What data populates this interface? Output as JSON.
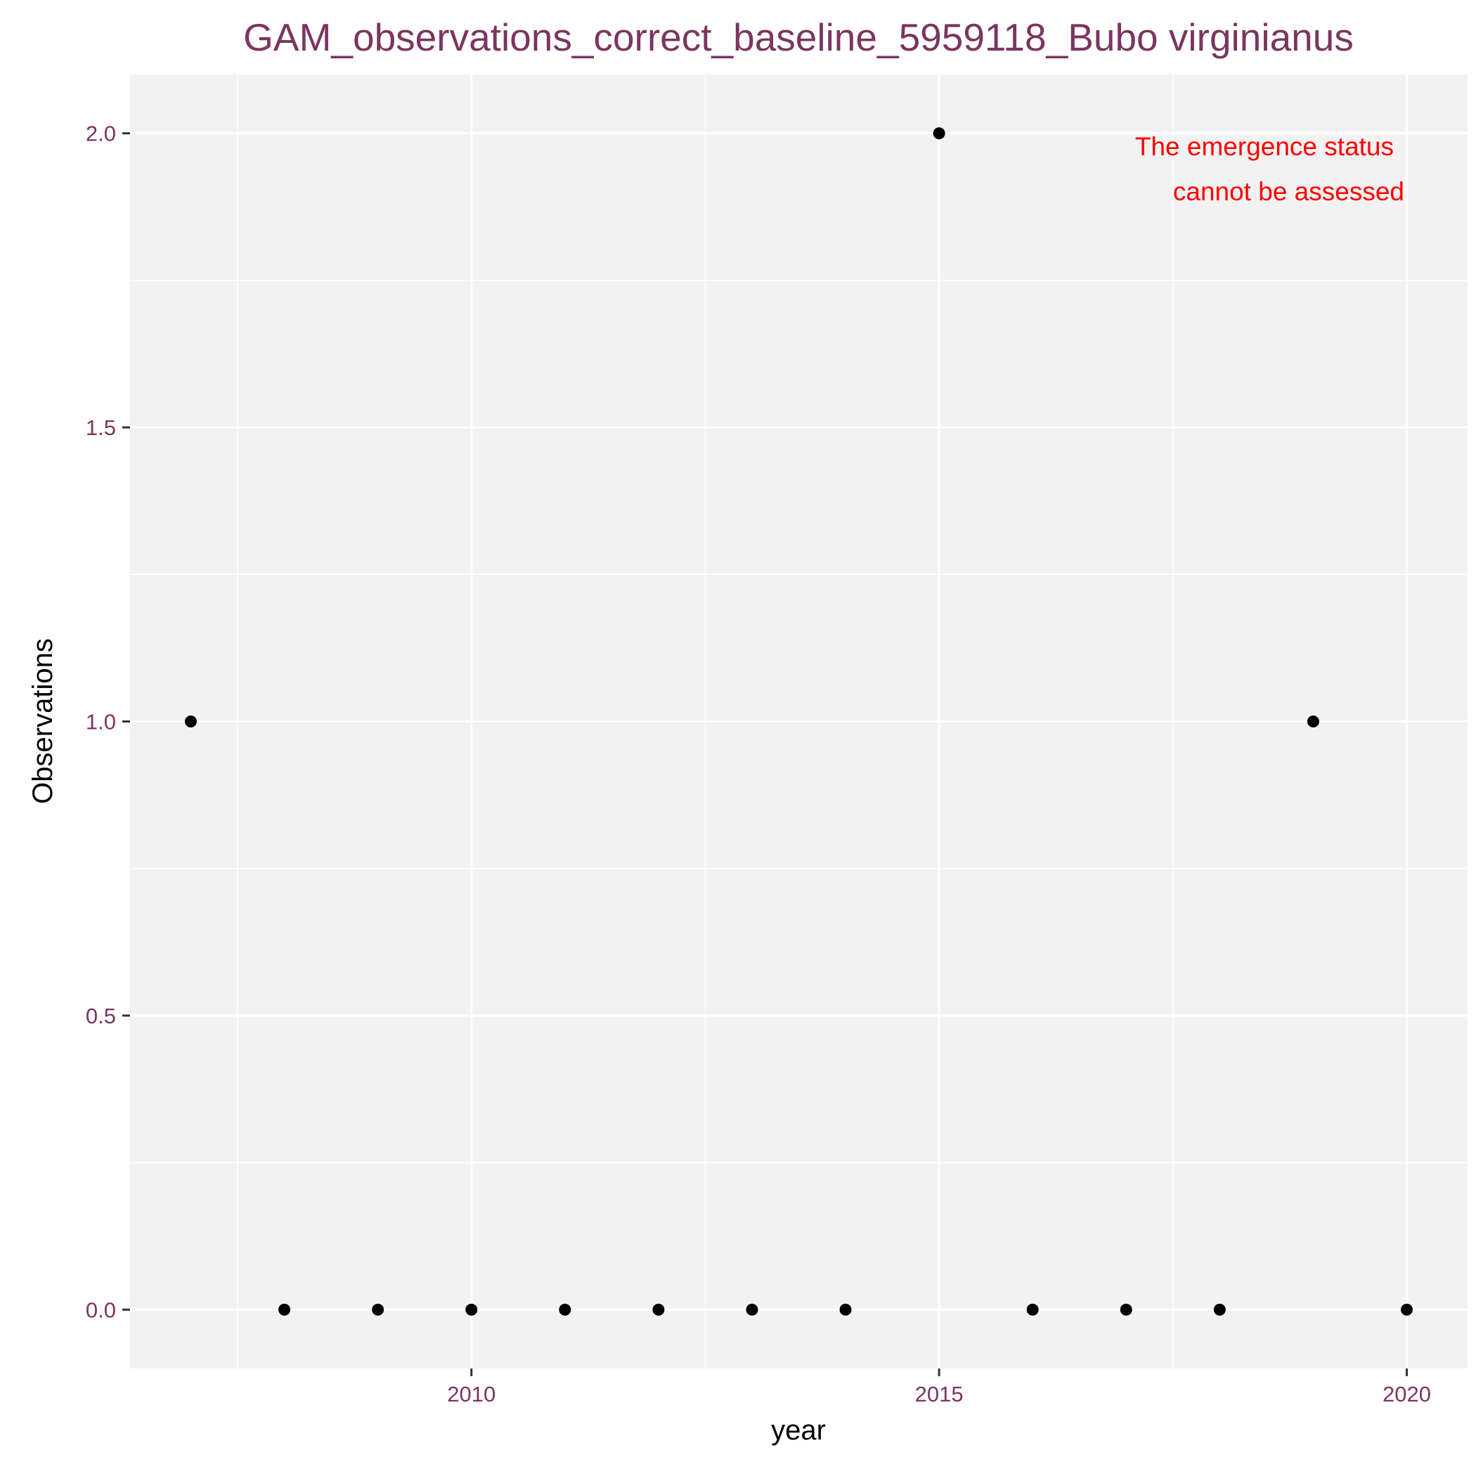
{
  "chart_data": {
    "type": "scatter",
    "title": "GAM_observations_correct_baseline_5959118_Bubo virginianus",
    "xlabel": "year",
    "ylabel": "Observations",
    "x": [
      2007,
      2008,
      2009,
      2010,
      2011,
      2012,
      2013,
      2014,
      2015,
      2016,
      2017,
      2018,
      2019,
      2020
    ],
    "y": [
      1,
      0,
      0,
      0,
      0,
      0,
      0,
      0,
      2,
      0,
      0,
      0,
      1,
      0
    ],
    "xlim": [
      2006.35,
      2020.65
    ],
    "ylim": [
      -0.1,
      2.1
    ],
    "x_ticks": [
      2010,
      2015,
      2020
    ],
    "x_tick_labels": [
      "2010",
      "2015",
      "2020"
    ],
    "x_minor_ticks": [
      2007.5,
      2012.5,
      2017.5
    ],
    "y_ticks": [
      0,
      0.5,
      1,
      1.5,
      2
    ],
    "y_tick_labels": [
      "0.0",
      "0.5",
      "1.0",
      "1.5",
      "2.0"
    ],
    "y_minor_ticks": [
      0.25,
      0.75,
      1.25,
      1.75
    ],
    "annotation": {
      "lines": [
        "The emergence status",
        "cannot be assessed"
      ],
      "color": "#ff0000",
      "placement": "top-right"
    },
    "grid": true,
    "colors": {
      "panel_background": "#f2f2f2",
      "grid": "#ffffff",
      "point": "#000000",
      "title": "#7b3560",
      "tick_label": "#7b3560"
    }
  }
}
